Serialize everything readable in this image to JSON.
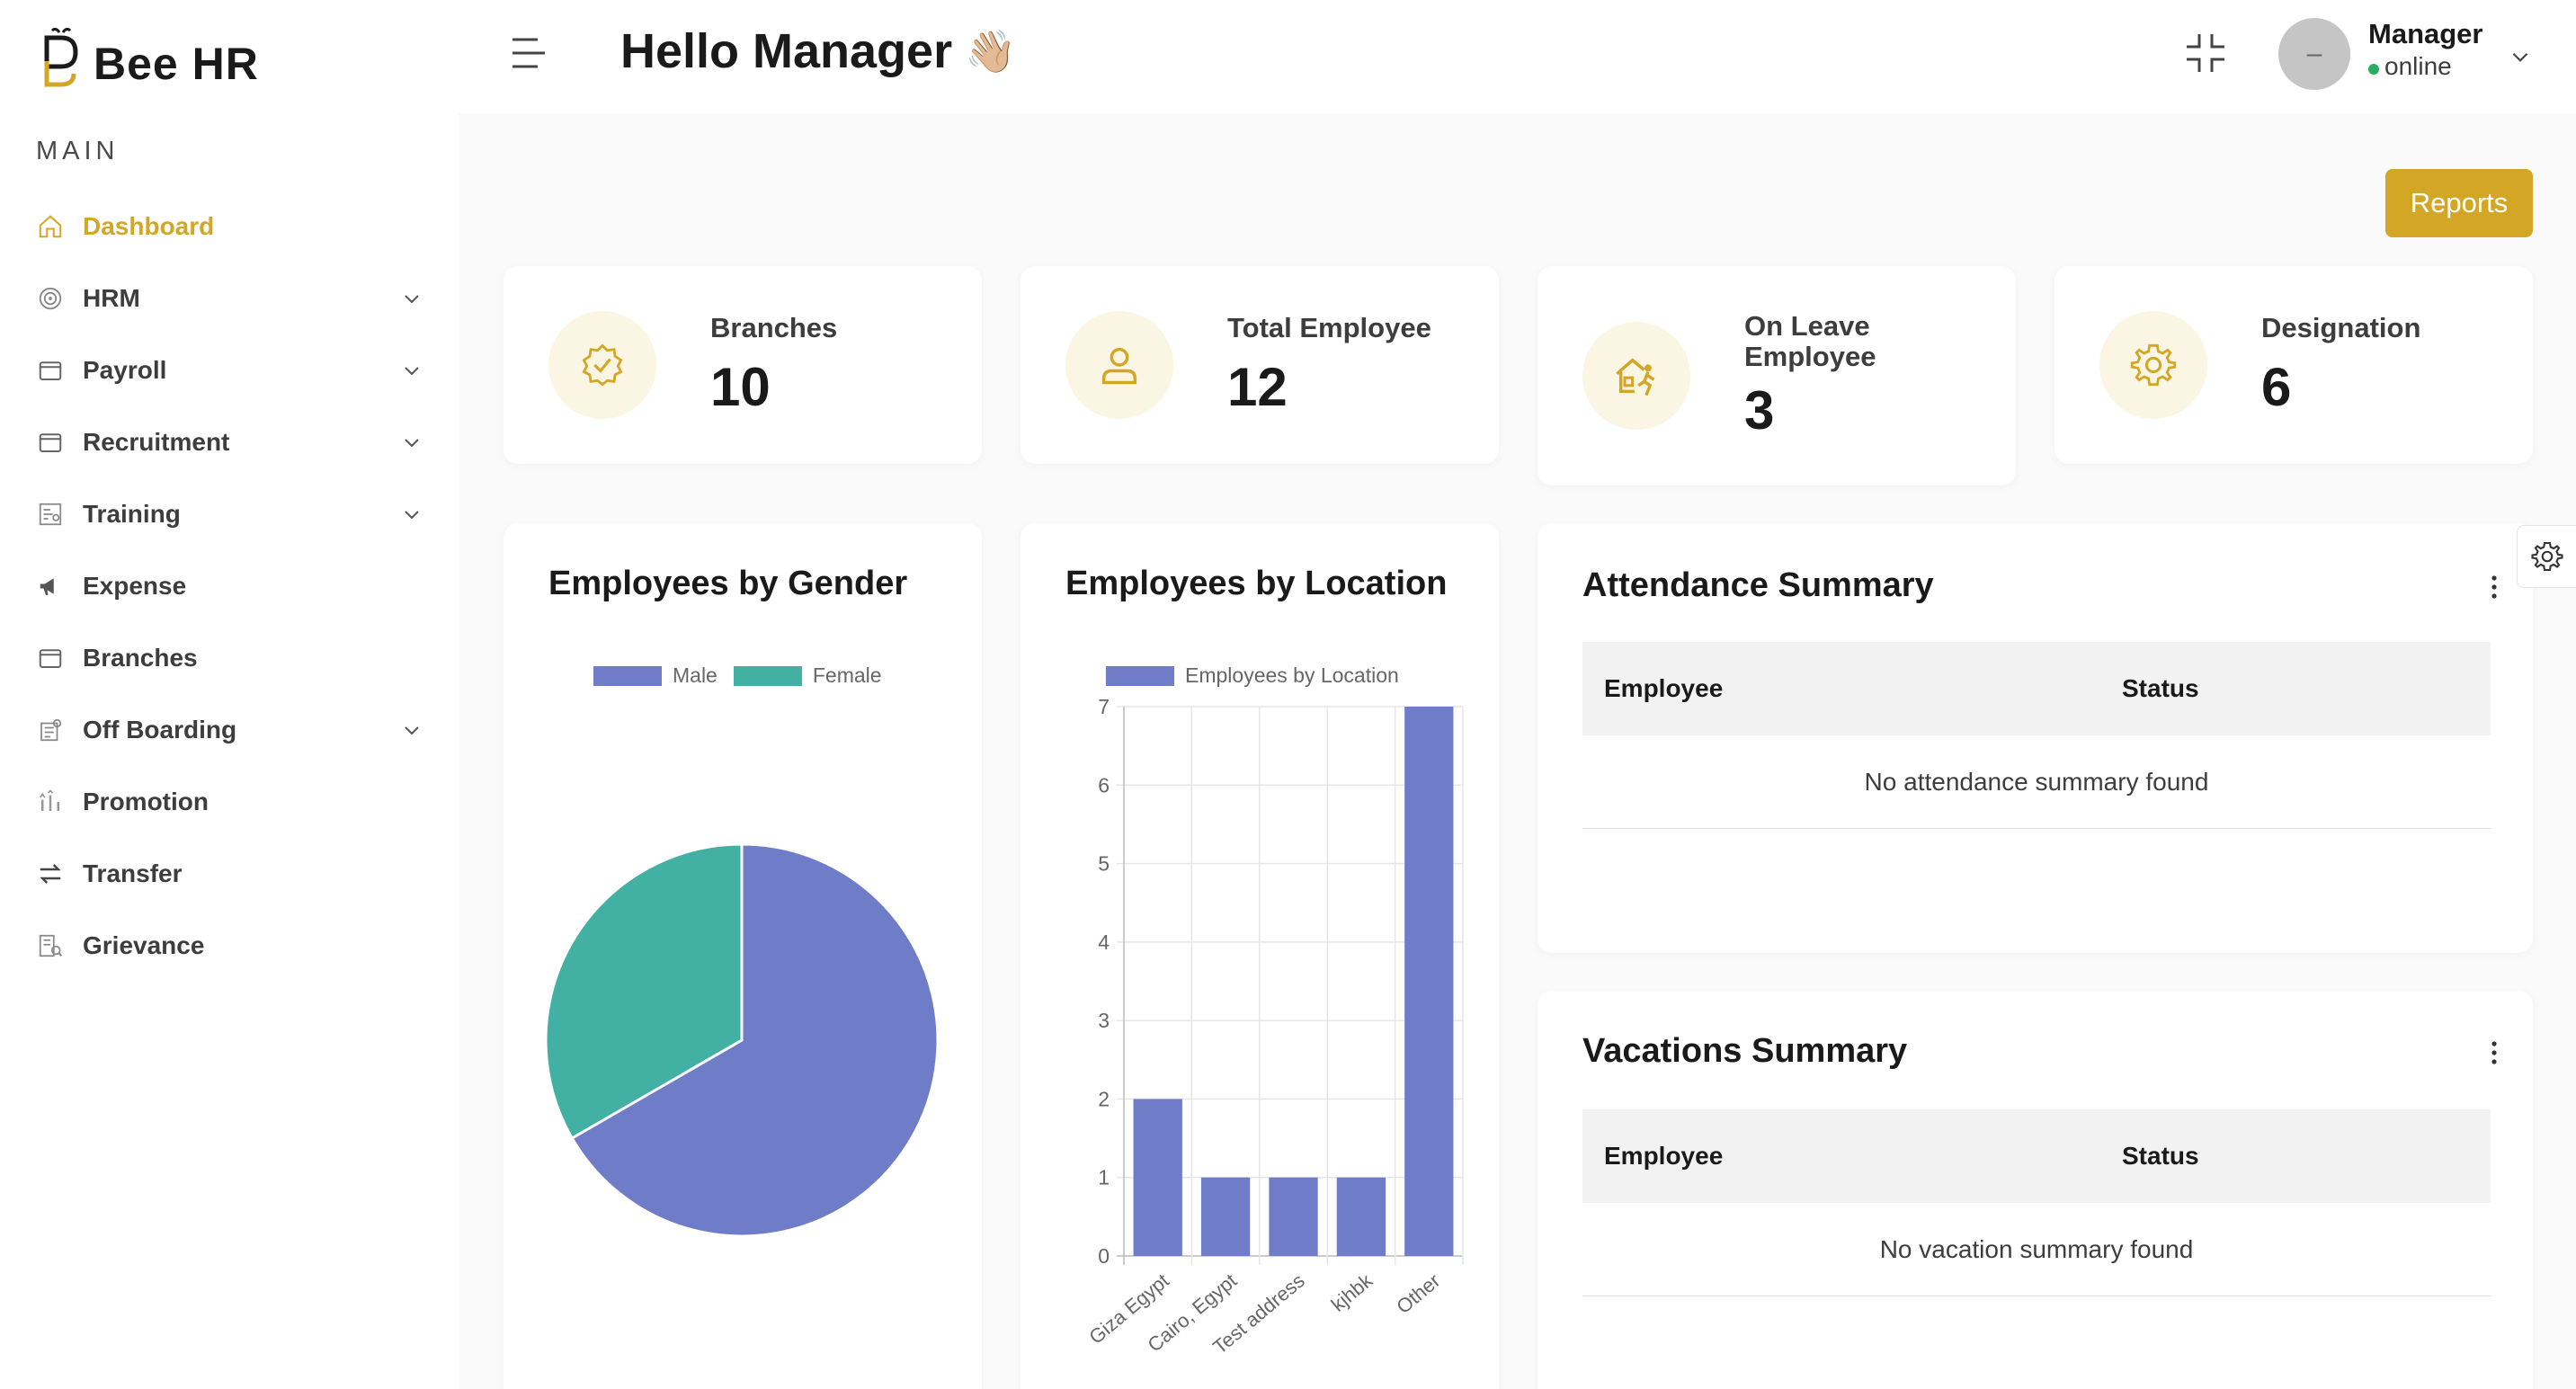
{
  "brand": {
    "name": "Bee HR",
    "accent": "#d4a625"
  },
  "sidebar": {
    "section": "MAIN",
    "items": [
      {
        "label": "Dashboard",
        "icon": "home-icon",
        "active": true,
        "expandable": false
      },
      {
        "label": "HRM",
        "icon": "target-icon",
        "expandable": true
      },
      {
        "label": "Payroll",
        "icon": "wallet-icon",
        "expandable": true
      },
      {
        "label": "Recruitment",
        "icon": "wallet-icon",
        "expandable": true
      },
      {
        "label": "Training",
        "icon": "training-icon",
        "expandable": true
      },
      {
        "label": "Expense",
        "icon": "megaphone-icon",
        "expandable": false
      },
      {
        "label": "Branches",
        "icon": "wallet-icon",
        "expandable": false
      },
      {
        "label": "Off Boarding",
        "icon": "offboarding-icon",
        "expandable": true
      },
      {
        "label": "Promotion",
        "icon": "promotion-icon",
        "expandable": false
      },
      {
        "label": "Transfer",
        "icon": "transfer-icon",
        "expandable": false
      },
      {
        "label": "Grievance",
        "icon": "grievance-icon",
        "expandable": false
      }
    ]
  },
  "header": {
    "greeting": "Hello Manager",
    "wave": "👋🏼",
    "user": {
      "name": "Manager",
      "status": "online",
      "avatar_initial": "–"
    }
  },
  "reports_label": "Reports",
  "stats": [
    {
      "label": "Branches",
      "value": "10",
      "icon": "badge-check-icon"
    },
    {
      "label": "Total Employee",
      "value": "12",
      "icon": "user-icon"
    },
    {
      "label": "On Leave Employee",
      "value": "3",
      "icon": "leave-house-icon"
    },
    {
      "label": "Designation",
      "value": "6",
      "icon": "gear-icon"
    }
  ],
  "gender_chart": {
    "title": "Employees by Gender",
    "chart_data": {
      "type": "pie",
      "labels": [
        "Male",
        "Female"
      ],
      "values": [
        8,
        4
      ],
      "colors": [
        "#6f7dc8",
        "#43b0a4"
      ]
    }
  },
  "location_chart": {
    "title": "Employees by Location",
    "chart_data": {
      "type": "bar",
      "categories": [
        "Giza Egypt",
        "Cairo, Egypt",
        "Test address",
        "kjhbk",
        "Other"
      ],
      "series": [
        {
          "name": "Employees by Location",
          "values": [
            2,
            1,
            1,
            1,
            7
          ]
        }
      ],
      "ylim": [
        0,
        7
      ],
      "yticks": [
        "0",
        "1",
        "2",
        "3",
        "4",
        "5",
        "6",
        "7"
      ],
      "color": "#6f7dc8"
    }
  },
  "attendance": {
    "title": "Attendance Summary",
    "col_employee": "Employee",
    "col_status": "Status",
    "empty": "No attendance summary found"
  },
  "vacations": {
    "title": "Vacations Summary",
    "col_employee": "Employee",
    "col_status": "Status",
    "empty": "No vacation summary found"
  }
}
